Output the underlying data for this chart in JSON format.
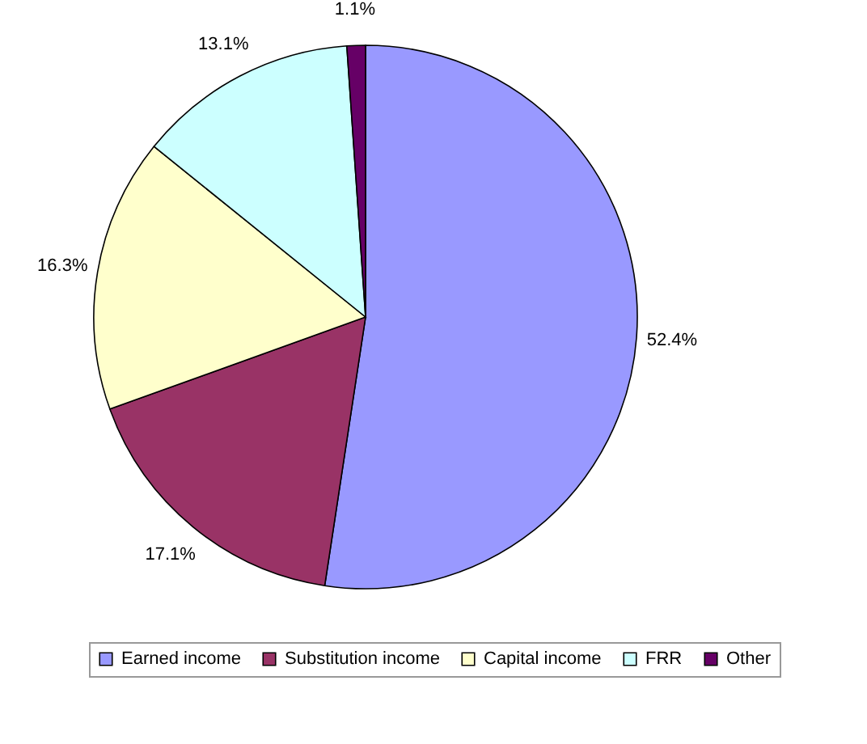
{
  "chart_data": {
    "type": "pie",
    "categories": [
      "Earned income",
      "Substitution income",
      "Capital income",
      "FRR",
      "Other"
    ],
    "values": [
      52.4,
      17.1,
      16.3,
      13.1,
      1.1
    ],
    "colors": [
      "#9999ff",
      "#993366",
      "#ffffcc",
      "#ccffff",
      "#660066"
    ],
    "value_labels": [
      "52.4%",
      "17.1%",
      "16.3%",
      "13.1%",
      "1.1%"
    ],
    "legend": "bottom"
  }
}
